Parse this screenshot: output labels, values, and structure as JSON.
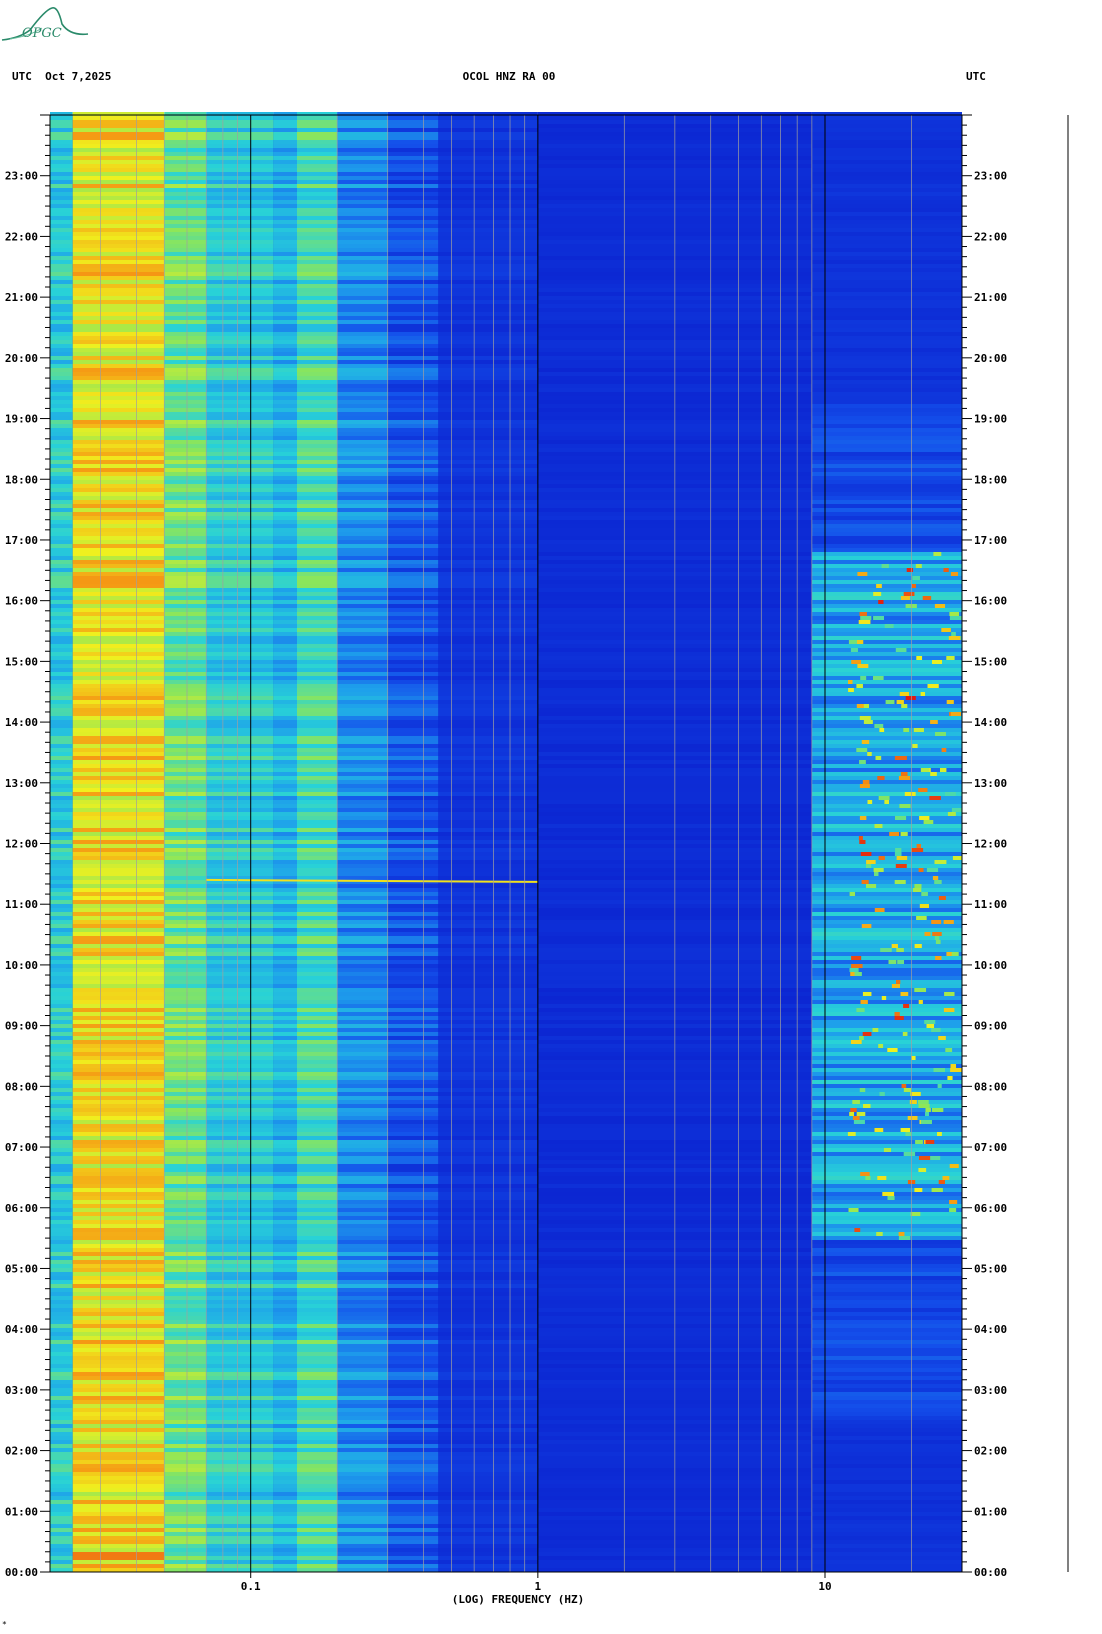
{
  "header": {
    "left": "UTC  Oct 7,2025",
    "center": "OCOL HNZ RA 00",
    "right": "UTC"
  },
  "logo": {
    "text": "OPGC",
    "icon": "opgc-mountain-logo-icon"
  },
  "corner_mark": "*",
  "colors": {
    "background_low": "#0a1fd0",
    "mid": "#2ad4d4",
    "high": "#f0f020",
    "peak": "#e02010"
  },
  "chart_data": {
    "type": "heatmap",
    "title": "OCOL HNZ RA 00",
    "xlabel": "(LOG) FREQUENCY (HZ)",
    "ylabel": "UTC",
    "x_scale": "log",
    "xlim": [
      0.02,
      30
    ],
    "x_ticks": [
      0.1,
      1,
      10
    ],
    "x_tick_labels": [
      "0.1",
      "1",
      "10"
    ],
    "ylim": [
      0,
      24
    ],
    "y_ticks": [
      0,
      1,
      2,
      3,
      4,
      5,
      6,
      7,
      8,
      9,
      10,
      11,
      12,
      13,
      14,
      15,
      16,
      17,
      18,
      19,
      20,
      21,
      22,
      23
    ],
    "y_tick_labels": [
      "00:00",
      "01:00",
      "02:00",
      "03:00",
      "04:00",
      "05:00",
      "06:00",
      "07:00",
      "08:00",
      "09:00",
      "10:00",
      "11:00",
      "12:00",
      "13:00",
      "14:00",
      "15:00",
      "16:00",
      "17:00",
      "18:00",
      "19:00",
      "20:00",
      "21:00",
      "22:00",
      "23:00"
    ],
    "grid": true,
    "bands": [
      {
        "f_low": 0.02,
        "f_high": 0.024,
        "level": 0.45
      },
      {
        "f_low": 0.024,
        "f_high": 0.05,
        "level": 0.78
      },
      {
        "f_low": 0.05,
        "f_high": 0.07,
        "level": 0.58
      },
      {
        "f_low": 0.07,
        "f_high": 0.12,
        "level": 0.45
      },
      {
        "f_low": 0.12,
        "f_high": 0.145,
        "level": 0.38
      },
      {
        "f_low": 0.145,
        "f_high": 0.2,
        "level": 0.52
      },
      {
        "f_low": 0.2,
        "f_high": 0.3,
        "level": 0.28
      },
      {
        "f_low": 0.3,
        "f_high": 0.45,
        "level": 0.15
      },
      {
        "f_low": 0.45,
        "f_high": 1.0,
        "level": 0.07
      },
      {
        "f_low": 1.0,
        "f_high": 9.0,
        "level": 0.03
      },
      {
        "f_low": 9.0,
        "f_high": 30,
        "level": 0.05
      }
    ],
    "high_freq_activity": {
      "f_low": 9.5,
      "f_high": 30,
      "active_hours": [
        [
          5.5,
          16.8
        ]
      ],
      "weak_hours": [
        [
          2.5,
          5.5
        ],
        [
          16.8,
          19.3
        ]
      ]
    },
    "low_freq_peaks": [
      {
        "hours": [
          0.1,
          0.4
        ],
        "level": 1.0
      },
      {
        "hours": [
          2.5,
          9.0
        ],
        "level": 0.9
      }
    ],
    "event": {
      "hour": 11.4,
      "f_start": 0.07,
      "f_end": 1.0
    }
  }
}
